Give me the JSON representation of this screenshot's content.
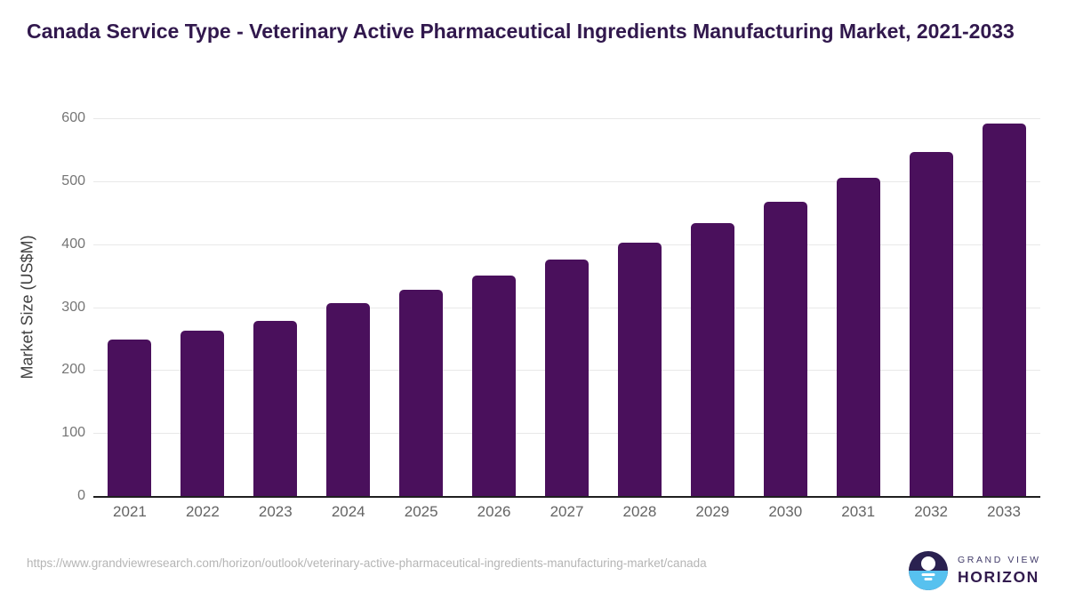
{
  "header": {
    "title": "Canada Service Type - Veterinary Active Pharmaceutical Ingredients Manufacturing Market, 2021-2033"
  },
  "chart_data": {
    "type": "bar",
    "title": "Canada Service Type - Veterinary Active Pharmaceutical Ingredients Manufacturing Market, 2021-2033",
    "categories": [
      "2021",
      "2022",
      "2023",
      "2024",
      "2025",
      "2026",
      "2027",
      "2028",
      "2029",
      "2030",
      "2031",
      "2032",
      "2033"
    ],
    "values": [
      249,
      263,
      278,
      306,
      327,
      350,
      375,
      403,
      433,
      468,
      505,
      547,
      592
    ],
    "xlabel": "",
    "ylabel": "Market Size (US$M)",
    "ylim": [
      0,
      600
    ],
    "ytick_interval": 100,
    "yticks": [
      0,
      100,
      200,
      300,
      400,
      500,
      600
    ],
    "grid": "horizontal",
    "legend": "none",
    "bar_color": "#4a105c"
  },
  "footer": {
    "source_url": "https://www.grandviewresearch.com/horizon/outlook/veterinary-active-pharmaceutical-ingredients-manufacturing-market/canada",
    "brand": {
      "line1": "GRAND VIEW",
      "line2": "HORIZON"
    }
  },
  "colors": {
    "bar": "#4a105c",
    "title_text": "#31184d",
    "axis_tick_text": "#757575",
    "gridline": "#e8e8e8",
    "baseline": "#1f1f1f",
    "logo_dark": "#2a2150",
    "logo_blue": "#57c1ef"
  }
}
